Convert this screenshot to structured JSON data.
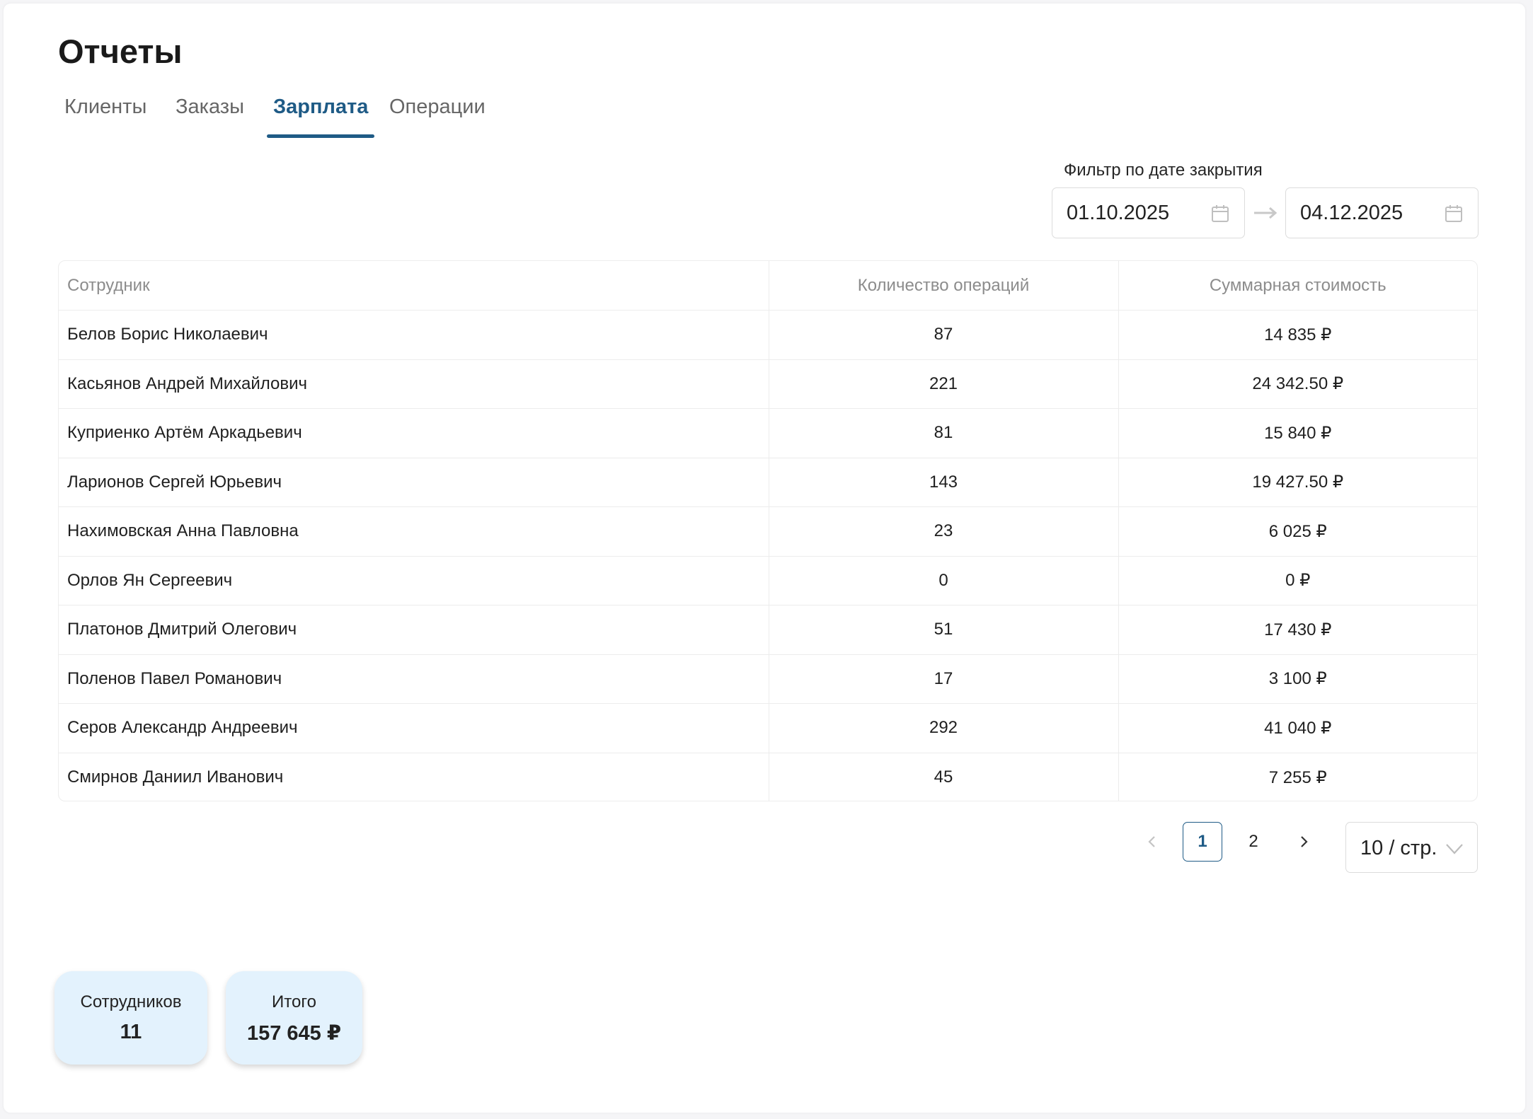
{
  "page": {
    "title": "Отчеты"
  },
  "tabs": [
    {
      "label": "Клиенты",
      "active": false
    },
    {
      "label": "Заказы",
      "active": false
    },
    {
      "label": "Зарплата",
      "active": true
    },
    {
      "label": "Операции",
      "active": false
    }
  ],
  "filter": {
    "label": "Фильтр по дате закрытия",
    "date_from": "01.10.2025",
    "date_to": "04.12.2025"
  },
  "table": {
    "headers": [
      "Сотрудник",
      "Количество операций",
      "Суммарная стоимость"
    ],
    "rows": [
      {
        "name": "Белов Борис Николаевич",
        "count": "87",
        "sum": "14 835 ₽"
      },
      {
        "name": "Касьянов Андрей Михайлович",
        "count": "221",
        "sum": "24 342.50 ₽"
      },
      {
        "name": "Куприенко Артём Аркадьевич",
        "count": "81",
        "sum": "15 840 ₽"
      },
      {
        "name": "Ларионов Сергей Юрьевич",
        "count": "143",
        "sum": "19 427.50 ₽"
      },
      {
        "name": "Нахимовская Анна Павловна",
        "count": "23",
        "sum": "6 025 ₽"
      },
      {
        "name": "Орлов Ян Сергеевич",
        "count": "0",
        "sum": "0 ₽"
      },
      {
        "name": "Платонов Дмитрий Олегович",
        "count": "51",
        "sum": "17 430 ₽"
      },
      {
        "name": "Поленов Павел Романович",
        "count": "17",
        "sum": "3 100 ₽"
      },
      {
        "name": "Серов Александр Андреевич",
        "count": "292",
        "sum": "41 040 ₽"
      },
      {
        "name": "Смирнов Даниил Иванович",
        "count": "45",
        "sum": "7 255 ₽"
      }
    ]
  },
  "pagination": {
    "pages": [
      "1",
      "2"
    ],
    "current": "1",
    "page_size": "10 / стр."
  },
  "stats": {
    "employees_label": "Сотрудников",
    "employees_value": "11",
    "total_label": "Итого",
    "total_value": "157 645 ₽"
  },
  "colors": {
    "accent": "#1f5b86",
    "stat_bg": "#e3f2fd"
  },
  "icons": [
    "calendar-icon",
    "arrow-right-icon",
    "chevron-left-icon",
    "chevron-right-icon",
    "chevron-down-icon"
  ]
}
